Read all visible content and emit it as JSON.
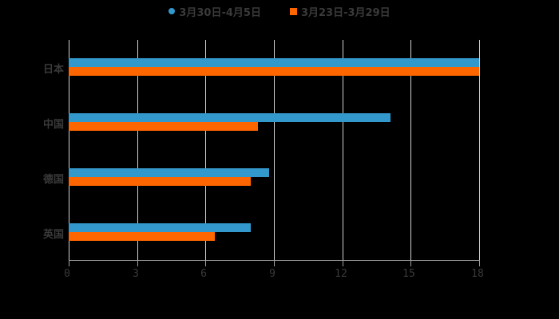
{
  "chart_data": {
    "type": "bar",
    "orientation": "horizontal",
    "title": "",
    "xlabel": "",
    "ylabel": "",
    "categories": [
      "日本",
      "中国",
      "德国",
      "英国"
    ],
    "series": [
      {
        "name": "3月30日-4月5日",
        "color": "#3399cc",
        "values": [
          18,
          14.1,
          8.8,
          8.0
        ]
      },
      {
        "name": "3月23日-3月29日",
        "color": "#ff6600",
        "values": [
          18,
          8.3,
          8.0,
          6.4
        ]
      }
    ],
    "xlim": [
      0,
      18
    ],
    "xticks": [
      "0",
      "3",
      "6",
      "9",
      "12",
      "15",
      "18"
    ],
    "grid": true,
    "legend_position": "top"
  },
  "legend": {
    "item0": "3月30日-4月5日",
    "item1": "3月23日-3月29日"
  }
}
